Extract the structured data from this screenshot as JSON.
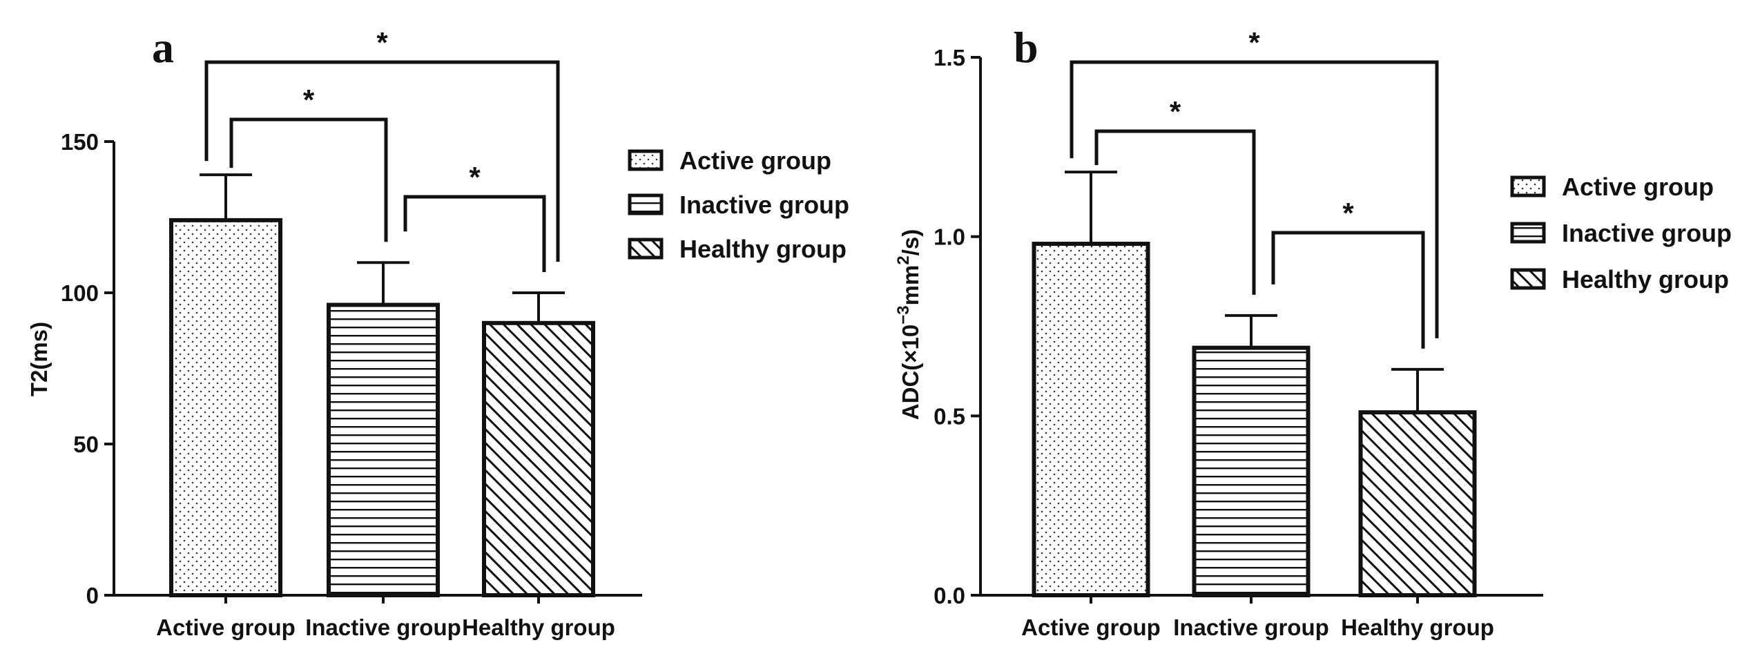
{
  "chart_data": [
    {
      "type": "bar",
      "panel_label": "a",
      "categories": [
        "Active group",
        "Inactive group",
        "Healthy group"
      ],
      "values": [
        124,
        96,
        90
      ],
      "errors": [
        15,
        14,
        10
      ],
      "patterns": [
        "dots",
        "hlines",
        "diag"
      ],
      "ylabel": "T2(ms)",
      "ylim": [
        0,
        150
      ],
      "yticks": [
        "0",
        "50",
        "100",
        "150"
      ],
      "ytick_values": [
        0,
        50,
        100,
        150
      ],
      "legend": [
        "Active group",
        "Inactive group",
        "Healthy group"
      ],
      "legend_position": "right",
      "significance": [
        {
          "from": 0,
          "to": 1,
          "label": "*",
          "level": 1
        },
        {
          "from": 1,
          "to": 2,
          "label": "*",
          "level": 0
        },
        {
          "from": 0,
          "to": 2,
          "label": "*",
          "level": 2
        }
      ]
    },
    {
      "type": "bar",
      "panel_label": "b",
      "categories": [
        "Active group",
        "Inactive group",
        "Healthy group"
      ],
      "values": [
        0.98,
        0.69,
        0.51
      ],
      "errors": [
        0.2,
        0.09,
        0.12
      ],
      "patterns": [
        "dots",
        "hlines",
        "diag"
      ],
      "ylabel_main": "ADC(×10",
      "ylabel_sup1": "−3",
      "ylabel_mid": "mm",
      "ylabel_sup2": "2",
      "ylabel_end": "/s)",
      "ylim": [
        0,
        1.5
      ],
      "yticks": [
        "0.0",
        "0.5",
        "1.0",
        "1.5"
      ],
      "ytick_values": [
        0,
        0.5,
        1.0,
        1.5
      ],
      "legend": [
        "Active group",
        "Inactive group",
        "Healthy group"
      ],
      "legend_position": "right",
      "significance": [
        {
          "from": 0,
          "to": 1,
          "label": "*",
          "level": 1
        },
        {
          "from": 1,
          "to": 2,
          "label": "*",
          "level": 0
        },
        {
          "from": 0,
          "to": 2,
          "label": "*",
          "level": 2
        }
      ]
    }
  ]
}
